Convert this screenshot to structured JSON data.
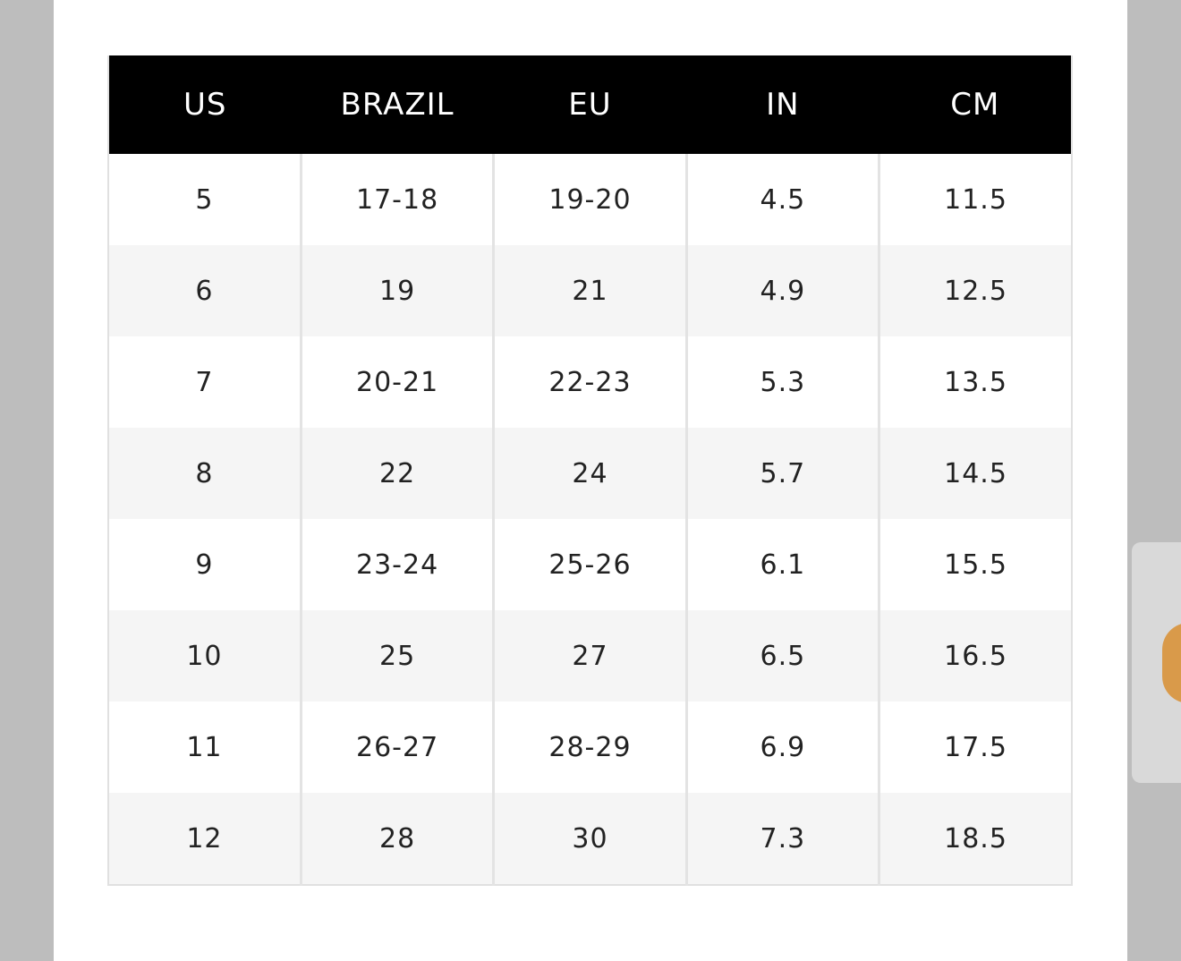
{
  "table": {
    "header": [
      "US",
      "BRAZIL",
      "EU",
      "IN",
      "CM"
    ],
    "rows": [
      [
        "5",
        "17-18",
        "19-20",
        "4.5",
        "11.5"
      ],
      [
        "6",
        "19",
        "21",
        "4.9",
        "12.5"
      ],
      [
        "7",
        "20-21",
        "22-23",
        "5.3",
        "13.5"
      ],
      [
        "8",
        "22",
        "24",
        "5.7",
        "14.5"
      ],
      [
        "9",
        "23-24",
        "25-26",
        "6.1",
        "15.5"
      ],
      [
        "10",
        "25",
        "27",
        "6.5",
        "16.5"
      ],
      [
        "11",
        "26-27",
        "28-29",
        "6.9",
        "17.5"
      ],
      [
        "12",
        "28",
        "30",
        "7.3",
        "18.5"
      ]
    ]
  }
}
